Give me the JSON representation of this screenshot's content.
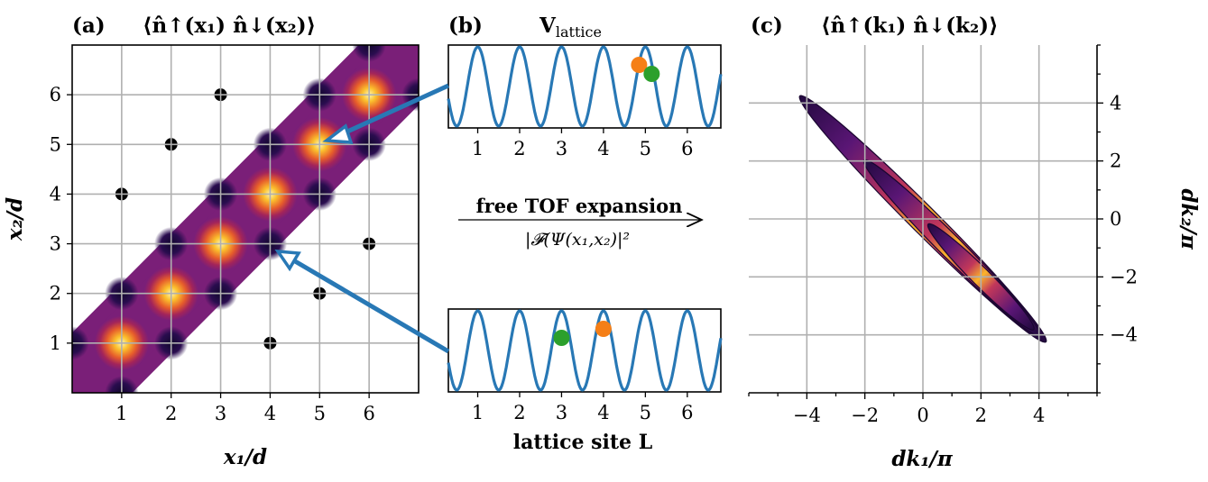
{
  "panel_a": {
    "letter": "(a)",
    "title": "⟨n̂↑(x₁) n̂↓(x₂)⟩",
    "x_ticks": [
      "1",
      "2",
      "3",
      "4",
      "5",
      "6"
    ],
    "y_ticks": [
      "1",
      "2",
      "3",
      "4",
      "5",
      "6"
    ],
    "xlabel": "x₁/d",
    "ylabel": "x₂/d"
  },
  "panel_b": {
    "letter": "(b)",
    "title": "V",
    "title_sub": "lattice",
    "x_ticks": [
      "1",
      "2",
      "3",
      "4",
      "5",
      "6"
    ],
    "xlabel": "lattice site L",
    "arrow_label_top": "free TOF expansion",
    "arrow_label_bottom": "|𝓕(Ψ(x₁,x₂)|²",
    "colors": {
      "lattice": "#2878b5",
      "up": "#f57f17",
      "down": "#2ca02c"
    }
  },
  "panel_c": {
    "letter": "(c)",
    "title": "⟨n̂↑(k₁) n̂↓(k₂)⟩",
    "x_ticks": [
      "−4",
      "−2",
      "0",
      "2",
      "4"
    ],
    "y_ticks": [
      "4",
      "2",
      "0",
      "−2",
      "−4"
    ],
    "xlabel": "dk₁/π",
    "ylabel": "dk₂/π"
  },
  "chart_data": [
    {
      "type": "heatmap",
      "x": [
        1,
        2,
        3,
        4,
        5,
        6
      ],
      "y": [
        1,
        2,
        3,
        4,
        5,
        6
      ],
      "xlim": [
        0,
        7
      ],
      "ylim": [
        0,
        7
      ],
      "grid": true,
      "peaks": [
        [
          1,
          1
        ],
        [
          2,
          2
        ],
        [
          3,
          3
        ],
        [
          4,
          4
        ],
        [
          5,
          5
        ],
        [
          6,
          6
        ]
      ],
      "holes": [
        [
          1,
          4
        ],
        [
          2,
          5
        ],
        [
          3,
          6
        ],
        [
          4,
          1
        ],
        [
          5,
          2
        ],
        [
          6,
          3
        ]
      ],
      "annotated_points": [
        [
          5,
          5
        ],
        [
          4,
          3
        ]
      ],
      "colormap": "inferno"
    },
    {
      "type": "line",
      "series": [
        {
          "positions": {
            "up": 4.85,
            "down": 5.15
          }
        },
        {
          "positions": {
            "up": 4.0,
            "down": 3.0
          }
        }
      ],
      "xlim": [
        0.3,
        6.8
      ]
    },
    {
      "type": "heatmap",
      "xlim": [
        -6,
        6
      ],
      "ylim": [
        -6,
        6
      ],
      "grid": true,
      "stripe_direction": "anti-diagonal",
      "stripe_offsets": [
        -4,
        -2,
        0,
        2,
        4
      ],
      "colormap": "inferno"
    }
  ]
}
